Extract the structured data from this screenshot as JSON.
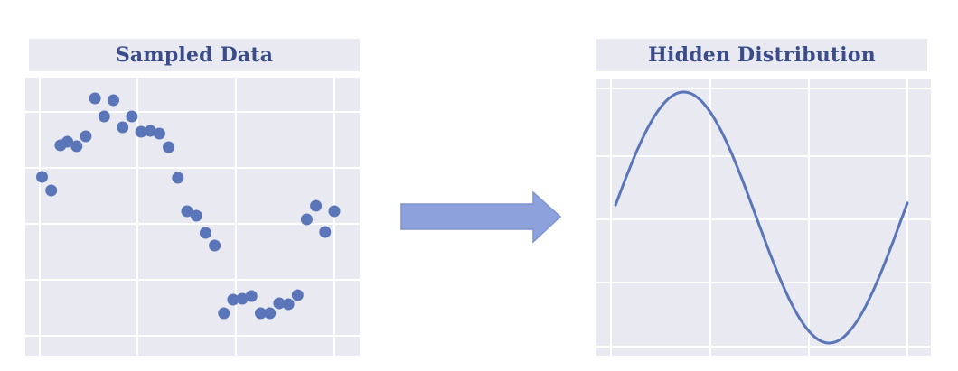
{
  "left_panel": {
    "title": "Sampled Data"
  },
  "right_panel": {
    "title": "Hidden Distribution"
  },
  "arrow": {
    "icon": "right-arrow-icon",
    "fill": "#8da2dc",
    "stroke": "#7e93cf"
  },
  "colors": {
    "panel_bg": "#e9eaf1",
    "grid": "#ffffff",
    "points": "#5a75b8",
    "curve": "#5a75b8"
  },
  "chart_data": [
    {
      "type": "scatter",
      "title": "Sampled Data",
      "xlim": [
        0,
        6.5
      ],
      "ylim": [
        -1.3,
        1.3
      ],
      "grid": true,
      "x": [
        0.05,
        0.25,
        0.45,
        0.6,
        0.8,
        1.0,
        1.2,
        1.4,
        1.6,
        1.8,
        2.0,
        2.2,
        2.4,
        2.6,
        2.8,
        3.0,
        3.2,
        3.4,
        3.6,
        3.8,
        4.0,
        4.2,
        4.4,
        4.6,
        4.8,
        5.0,
        5.2,
        5.4,
        5.6,
        5.8,
        6.0,
        6.2,
        6.4
      ],
      "y": [
        0.38,
        0.23,
        0.73,
        0.77,
        0.72,
        0.83,
        1.25,
        1.05,
        1.23,
        0.93,
        1.05,
        0.88,
        0.89,
        0.86,
        0.71,
        0.37,
        0.0,
        -0.05,
        -0.24,
        -0.38,
        -1.13,
        -0.98,
        -0.97,
        -0.94,
        -1.13,
        -1.13,
        -1.02,
        -1.03,
        -0.93,
        -0.09,
        0.06,
        -0.23,
        0.0
      ]
    },
    {
      "type": "line",
      "title": "Hidden Distribution",
      "function": "sine",
      "xlim": [
        0,
        6.5
      ],
      "ylim": [
        -1.15,
        1.15
      ],
      "x_start": 0.1,
      "x_end": 6.4,
      "grid": true
    }
  ]
}
